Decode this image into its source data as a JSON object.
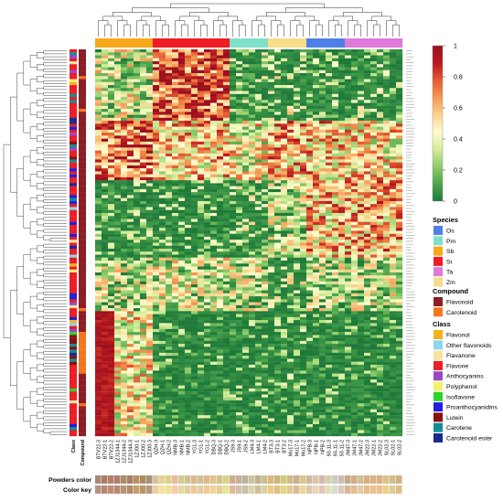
{
  "chart_data": {
    "type": "heatmap",
    "title": "",
    "value_range": [
      0,
      1
    ],
    "color_scale": {
      "stops": [
        "#1f7a3a",
        "#4da64d",
        "#8fcc6a",
        "#d6ec9a",
        "#fffdd0",
        "#fcd38d",
        "#f59852",
        "#e35a32",
        "#b8181e",
        "#9a0f1f"
      ],
      "ticks": [
        0,
        0.2,
        0.4,
        0.6,
        0.8,
        1
      ]
    },
    "row_count": 130,
    "columns": [
      {
        "name": "BTV22-3",
        "species": "Sb"
      },
      {
        "name": "BTV22-1",
        "species": "Sb"
      },
      {
        "name": "BTV22-2",
        "species": "Sb"
      },
      {
        "name": "1ZJ1344-1",
        "species": "Sb"
      },
      {
        "name": "1ZJ1344-2",
        "species": "Sb"
      },
      {
        "name": "1ZJ1344-3",
        "species": "Sb"
      },
      {
        "name": "1ZJ00-1",
        "species": "Sb"
      },
      {
        "name": "1ZJ00-2",
        "species": "Sb"
      },
      {
        "name": "1ZJ00-3",
        "species": "Sb"
      },
      {
        "name": "QZH-3",
        "species": "Si"
      },
      {
        "name": "QZH-1",
        "species": "Si"
      },
      {
        "name": "QZH-2",
        "species": "Si"
      },
      {
        "name": "NMB-3",
        "species": "Si"
      },
      {
        "name": "NMB-1",
        "species": "Si"
      },
      {
        "name": "NMB-2",
        "species": "Si"
      },
      {
        "name": "YG1-3",
        "species": "Si"
      },
      {
        "name": "YG1-1",
        "species": "Si"
      },
      {
        "name": "YG1-2",
        "species": "Si"
      },
      {
        "name": "DBQ-3",
        "species": "Si"
      },
      {
        "name": "DBQ-1",
        "species": "Si"
      },
      {
        "name": "DBQ-2",
        "species": "Si"
      },
      {
        "name": "JS9-3",
        "species": "Pm"
      },
      {
        "name": "JS9-1",
        "species": "Pm"
      },
      {
        "name": "JS9-2",
        "species": "Pm"
      },
      {
        "name": "LM4-3",
        "species": "Pm"
      },
      {
        "name": "LM4-1",
        "species": "Pm"
      },
      {
        "name": "LM4-2",
        "species": "Pm"
      },
      {
        "name": "BT3-3",
        "species": "Zm"
      },
      {
        "name": "BT3-1",
        "species": "Zm"
      },
      {
        "name": "BT3-2",
        "species": "Zm"
      },
      {
        "name": "Mo17-3",
        "species": "Zm"
      },
      {
        "name": "Mo17-1",
        "species": "Zm"
      },
      {
        "name": "Mo17-2",
        "species": "Zm"
      },
      {
        "name": "NPB-3",
        "species": "Os"
      },
      {
        "name": "NPB-1",
        "species": "Os"
      },
      {
        "name": "NPB-2",
        "species": "Os"
      },
      {
        "name": "93-11-3",
        "species": "Os"
      },
      {
        "name": "93-11-1",
        "species": "Os"
      },
      {
        "name": "93-11-2",
        "species": "Os"
      },
      {
        "name": "JM47-3",
        "species": "Ta"
      },
      {
        "name": "JM47-1",
        "species": "Ta"
      },
      {
        "name": "JM47-2",
        "species": "Ta"
      },
      {
        "name": "JM22-3",
        "species": "Ta"
      },
      {
        "name": "JM22-1",
        "species": "Ta"
      },
      {
        "name": "JM22-2",
        "species": "Ta"
      },
      {
        "name": "SL02-3",
        "species": "Ta"
      },
      {
        "name": "SL02-1",
        "species": "Ta"
      },
      {
        "name": "SL02-2",
        "species": "Ta"
      }
    ],
    "side_bar_labels": [
      "Class",
      "Compound"
    ],
    "bottom_rows": [
      {
        "label": "Powders color"
      },
      {
        "label": "Color key"
      }
    ],
    "legends": [
      {
        "title": "Species",
        "items": [
          {
            "label": "Os",
            "color": "#4f80e8"
          },
          {
            "label": "Pm",
            "color": "#7fe0c8"
          },
          {
            "label": "Sb",
            "color": "#f7a81b"
          },
          {
            "label": "Si",
            "color": "#ee1c25"
          },
          {
            "label": "Ta",
            "color": "#e07ad8"
          },
          {
            "label": "Zm",
            "color": "#f7dc8c"
          }
        ]
      },
      {
        "title": "Compound",
        "items": [
          {
            "label": "Flavonoid",
            "color": "#8b1d24"
          },
          {
            "label": "Carotenoid",
            "color": "#f3771f"
          }
        ]
      },
      {
        "title": "Class",
        "items": [
          {
            "label": "Flavonol",
            "color": "#f7b21b"
          },
          {
            "label": "Other flavonoids",
            "color": "#8fd4ee"
          },
          {
            "label": "Flavanone",
            "color": "#f7e39a"
          },
          {
            "label": "Flavone",
            "color": "#ee1c25"
          },
          {
            "label": "Anthocyanins",
            "color": "#9b46c9"
          },
          {
            "label": "Polyphenol",
            "color": "#f4ef6e"
          },
          {
            "label": "Isoflavone",
            "color": "#2ad52a"
          },
          {
            "label": "Proanthocyanidins",
            "color": "#1f1fe0"
          },
          {
            "label": "Lutein",
            "color": "#8b0f10"
          },
          {
            "label": "Carotene",
            "color": "#128d95"
          },
          {
            "label": "Carotenoid ester",
            "color": "#1a2a8c"
          }
        ]
      }
    ]
  }
}
